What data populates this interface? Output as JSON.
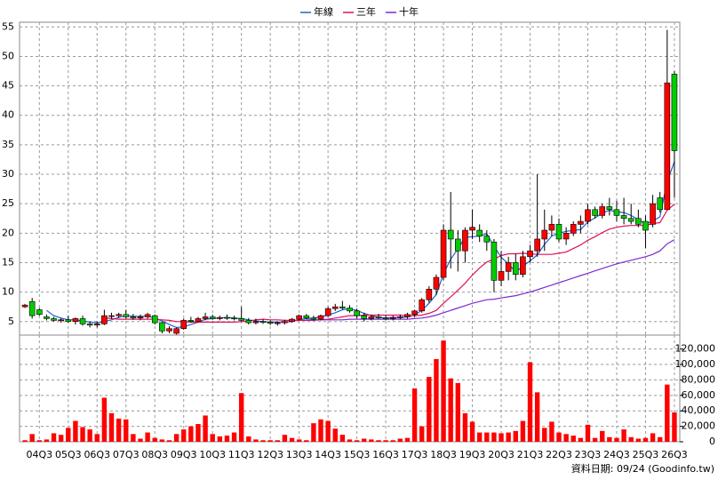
{
  "chart_data": [
    {
      "type": "candlestick",
      "categories": [
        null,
        null,
        "04Q3",
        null,
        null,
        null,
        "05Q3",
        null,
        null,
        null,
        "06Q3",
        null,
        null,
        null,
        "07Q3",
        null,
        null,
        null,
        "08Q3",
        null,
        null,
        null,
        "09Q3",
        null,
        null,
        null,
        "10Q3",
        null,
        null,
        null,
        "11Q3",
        null,
        null,
        null,
        "12Q3",
        null,
        null,
        null,
        "13Q3",
        null,
        null,
        null,
        "14Q3",
        null,
        null,
        null,
        "15Q3",
        null,
        null,
        null,
        "16Q3",
        null,
        null,
        null,
        "17Q3",
        null,
        null,
        null,
        "18Q3",
        null,
        null,
        null,
        "19Q3",
        null,
        null,
        null,
        "20Q3",
        null,
        null,
        null,
        "21Q3",
        null,
        null,
        null,
        "22Q3",
        null,
        null,
        null,
        "23Q3",
        null,
        null,
        null,
        "24Q3",
        null,
        null,
        null,
        "25Q3",
        null,
        null,
        null,
        "26Q3"
      ],
      "ohlc": [
        [
          7.5,
          8,
          7.3,
          7.8
        ],
        [
          8.4,
          9,
          5.5,
          6
        ],
        [
          7,
          7.3,
          6,
          6.2
        ],
        [
          5.8,
          6.2,
          5.2,
          5.5
        ],
        [
          5.5,
          5.8,
          5,
          5.2
        ],
        [
          5.2,
          5.6,
          4.8,
          5.3
        ],
        [
          5.3,
          6,
          4.8,
          5
        ],
        [
          5,
          5.7,
          4.5,
          5.5
        ],
        [
          5.5,
          6,
          4.3,
          4.6
        ],
        [
          4.6,
          5,
          4,
          4.4
        ],
        [
          4.4,
          5,
          4,
          4.6
        ],
        [
          4.6,
          7,
          4.4,
          6
        ],
        [
          6,
          6.5,
          5.5,
          6
        ],
        [
          6,
          6.5,
          5.6,
          6.2
        ],
        [
          6.2,
          7,
          5.5,
          5.8
        ],
        [
          5.8,
          6.3,
          5.3,
          5.6
        ],
        [
          5.6,
          6.2,
          5.2,
          5.8
        ],
        [
          5.8,
          6.5,
          5.5,
          6.2
        ],
        [
          6,
          6.2,
          4.5,
          4.8
        ],
        [
          4.8,
          5,
          3,
          3.4
        ],
        [
          3.4,
          4.2,
          3,
          3.8
        ],
        [
          3,
          4,
          2.8,
          3.8
        ],
        [
          3.8,
          5.5,
          3.6,
          5.2
        ],
        [
          5.2,
          5.8,
          4.8,
          5
        ],
        [
          5,
          5.8,
          4.8,
          5.5
        ],
        [
          5.5,
          6.5,
          5.2,
          5.8
        ],
        [
          5.8,
          6.2,
          5.3,
          5.5
        ],
        [
          5.5,
          6,
          5.2,
          5.7
        ],
        [
          5.7,
          6.2,
          5.3,
          5.6
        ],
        [
          5.6,
          6,
          5.2,
          5.5
        ],
        [
          5.5,
          7.5,
          5,
          5.2
        ],
        [
          5.2,
          5.6,
          4.5,
          4.8
        ],
        [
          4.8,
          5.5,
          4.5,
          5
        ],
        [
          5,
          5.4,
          4.6,
          4.9
        ],
        [
          4.9,
          5.2,
          4.4,
          4.7
        ],
        [
          4.7,
          5,
          4.3,
          4.8
        ],
        [
          4.8,
          5.3,
          4.5,
          5
        ],
        [
          5,
          5.6,
          4.8,
          5.4
        ],
        [
          5.4,
          6.2,
          5.2,
          6
        ],
        [
          6,
          6.3,
          5.4,
          5.6
        ],
        [
          5.6,
          6,
          5.2,
          5.4
        ],
        [
          5.4,
          6.2,
          5.2,
          6
        ],
        [
          6,
          7.5,
          5.8,
          7.2
        ],
        [
          7.2,
          8,
          6.8,
          7.5
        ],
        [
          7.5,
          8.5,
          7,
          7.3
        ],
        [
          7.3,
          7.8,
          6.5,
          6.8
        ],
        [
          6.8,
          7.2,
          5.5,
          6
        ],
        [
          6,
          6.5,
          5,
          5.5
        ],
        [
          5.5,
          6.2,
          5.2,
          5.8
        ],
        [
          5.8,
          6.3,
          5.4,
          5.6
        ],
        [
          5.6,
          6,
          5.2,
          5.5
        ],
        [
          5.5,
          6,
          5.2,
          5.7
        ],
        [
          5.7,
          6.2,
          5.4,
          5.8
        ],
        [
          5.8,
          6.5,
          5.5,
          6.2
        ],
        [
          6.2,
          7,
          5.8,
          6.8
        ],
        [
          6.8,
          9,
          6.5,
          8.7
        ],
        [
          8.7,
          11,
          8.2,
          10.5
        ],
        [
          10.5,
          13,
          9.5,
          12.5
        ],
        [
          12.5,
          21.5,
          12,
          20.5
        ],
        [
          20.5,
          27,
          14,
          19
        ],
        [
          19,
          20.5,
          13.5,
          17
        ],
        [
          17,
          21,
          15,
          20.5
        ],
        [
          20.5,
          24,
          19,
          21
        ],
        [
          20.5,
          21.5,
          18.5,
          19.5
        ],
        [
          19.5,
          20.5,
          17,
          18.5
        ],
        [
          18.5,
          19,
          10,
          12
        ],
        [
          12,
          17,
          11,
          13.5
        ],
        [
          13.5,
          16,
          12,
          15
        ],
        [
          15,
          16.5,
          12,
          13
        ],
        [
          13,
          17,
          12.5,
          16
        ],
        [
          16,
          18,
          15,
          17
        ],
        [
          17,
          30,
          16,
          19
        ],
        [
          19,
          24,
          17,
          20.5
        ],
        [
          20.5,
          23,
          19.5,
          21.5
        ],
        [
          21.5,
          22.5,
          18.5,
          19
        ],
        [
          19,
          21,
          18,
          20
        ],
        [
          20,
          22,
          19.5,
          21.5
        ],
        [
          21.5,
          23,
          20,
          22
        ],
        [
          22,
          25,
          21.5,
          24
        ],
        [
          24,
          24.5,
          22.5,
          23
        ],
        [
          23,
          25,
          22.5,
          24.5
        ],
        [
          24.5,
          26,
          23,
          24
        ],
        [
          24,
          25.5,
          22,
          23
        ],
        [
          23,
          26,
          21.5,
          22.5
        ],
        [
          22.5,
          25,
          21.5,
          22
        ],
        [
          22.5,
          24,
          21,
          21.5
        ],
        [
          22,
          23,
          17.5,
          20.5
        ],
        [
          21.5,
          26.5,
          21,
          25
        ],
        [
          26,
          27,
          23.5,
          24
        ],
        [
          24,
          54.5,
          24,
          45.5
        ],
        [
          47,
          47.5,
          26,
          34
        ]
      ],
      "up_color": "#ff0000",
      "down_color": "#00cc00",
      "wick_color": "#000000",
      "series": [
        {
          "name": "年線",
          "color": "#2060d0",
          "values": [
            null,
            null,
            null,
            6.9,
            6.0,
            5.6,
            5.3,
            5.3,
            5.1,
            4.9,
            4.8,
            5.0,
            5.3,
            5.7,
            6.0,
            5.9,
            5.9,
            5.9,
            5.6,
            5.1,
            4.5,
            4.0,
            4.1,
            4.5,
            4.9,
            5.4,
            5.5,
            5.6,
            5.7,
            5.6,
            5.5,
            5.3,
            5.1,
            5.0,
            4.9,
            4.9,
            4.9,
            5.0,
            5.3,
            5.5,
            5.6,
            5.8,
            6.1,
            6.5,
            7.0,
            7.2,
            6.9,
            6.4,
            6.0,
            5.7,
            5.6,
            5.7,
            5.7,
            5.8,
            6.1,
            6.9,
            8.1,
            9.6,
            13.1,
            15.6,
            17.3,
            19.3,
            19.4,
            19.5,
            19.9,
            17.8,
            15.9,
            14.8,
            13.4,
            14.4,
            15.3,
            16.3,
            18.1,
            19.5,
            20.0,
            20.3,
            20.5,
            20.6,
            21.9,
            22.6,
            23.4,
            23.9,
            23.6,
            23.5,
            23.0,
            22.3,
            21.6,
            22.0,
            22.8,
            28.8,
            32.1
          ]
        },
        {
          "name": "三年",
          "color": "#e0105a",
          "values": [
            null,
            null,
            null,
            null,
            null,
            null,
            null,
            null,
            null,
            null,
            null,
            5.6,
            5.5,
            5.4,
            5.4,
            5.4,
            5.4,
            5.4,
            5.4,
            5.3,
            5.2,
            5.0,
            5.0,
            4.9,
            4.9,
            4.9,
            4.9,
            4.9,
            4.9,
            4.9,
            5.0,
            5.1,
            5.3,
            5.4,
            5.3,
            5.3,
            5.2,
            5.2,
            5.2,
            5.2,
            5.2,
            5.3,
            5.4,
            5.6,
            5.8,
            6.0,
            6.0,
            6.1,
            6.1,
            6.1,
            6.1,
            6.1,
            6.1,
            6.0,
            6.0,
            6.1,
            6.4,
            6.9,
            8.1,
            9.2,
            10.3,
            11.5,
            12.9,
            14.1,
            15.1,
            15.6,
            16.2,
            16.5,
            16.5,
            16.6,
            16.5,
            16.4,
            16.4,
            16.4,
            16.6,
            16.8,
            17.4,
            18.0,
            18.8,
            19.4,
            20.1,
            20.7,
            21.0,
            21.2,
            21.3,
            21.3,
            21.3,
            21.6,
            21.8,
            23.9,
            24.9
          ]
        },
        {
          "name": "十年",
          "color": "#7a2ccf",
          "values": [
            null,
            null,
            null,
            null,
            null,
            null,
            null,
            null,
            null,
            null,
            null,
            null,
            null,
            null,
            null,
            null,
            null,
            null,
            null,
            null,
            null,
            null,
            null,
            null,
            null,
            null,
            null,
            null,
            null,
            null,
            null,
            null,
            null,
            null,
            null,
            null,
            null,
            null,
            null,
            5.3,
            5.3,
            5.3,
            5.3,
            5.3,
            5.3,
            5.4,
            5.4,
            5.4,
            5.4,
            5.4,
            5.4,
            5.4,
            5.4,
            5.4,
            5.5,
            5.6,
            5.8,
            6.1,
            6.5,
            6.9,
            7.3,
            7.7,
            8.1,
            8.4,
            8.7,
            8.8,
            9.0,
            9.2,
            9.4,
            9.7,
            10.0,
            10.4,
            10.8,
            11.2,
            11.6,
            12.0,
            12.4,
            12.8,
            13.2,
            13.6,
            14.0,
            14.4,
            14.8,
            15.1,
            15.4,
            15.7,
            16.0,
            16.4,
            17.0,
            18.2,
            18.9
          ]
        }
      ],
      "ylim": [
        2.7,
        55.8
      ],
      "yticks": [
        5,
        10,
        15,
        20,
        25,
        30,
        35,
        40,
        45,
        50,
        55
      ],
      "grid": true,
      "legend_position": "top"
    },
    {
      "type": "bar",
      "color": "#ff0000",
      "values": [
        2000,
        10000,
        2000,
        3000,
        11000,
        9000,
        18000,
        27000,
        19000,
        16000,
        10000,
        57000,
        37000,
        30000,
        29000,
        10000,
        4000,
        12000,
        5000,
        3000,
        2000,
        10000,
        16000,
        20000,
        23000,
        34000,
        10000,
        7000,
        8000,
        12000,
        63000,
        7000,
        3000,
        2000,
        2000,
        2000,
        9000,
        5000,
        3000,
        2000,
        24000,
        29000,
        27000,
        17000,
        9000,
        3000,
        2000,
        4000,
        3000,
        2000,
        2000,
        2000,
        4000,
        5000,
        69000,
        20000,
        84000,
        107000,
        131000,
        82000,
        76000,
        37000,
        26000,
        12000,
        12000,
        12000,
        11000,
        12000,
        14000,
        27000,
        103000,
        64000,
        18000,
        26000,
        12000,
        10000,
        8000,
        5000,
        22000,
        5000,
        14000,
        6000,
        5000,
        16000,
        6000,
        4000,
        5000,
        11000,
        6000,
        74000,
        38000
      ],
      "ylim": [
        0,
        138000
      ],
      "yticks": [
        0,
        {
          "value": 20000,
          "label": "20,000"
        },
        {
          "value": 40000,
          "label": "40,000"
        },
        {
          "value": 60000,
          "label": "60,000"
        },
        {
          "value": 80000,
          "label": "80,000"
        },
        {
          "value": 100000,
          "label": "100,000"
        },
        {
          "value": 120000,
          "label": "120,000"
        }
      ],
      "grid": true,
      "axis_side": "right"
    }
  ],
  "footer": "資料日期: 09/24 (Goodinfo.tw)"
}
